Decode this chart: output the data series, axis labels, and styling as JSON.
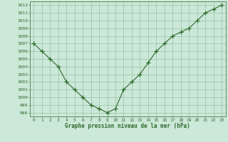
{
  "x": [
    0,
    1,
    2,
    3,
    4,
    5,
    6,
    7,
    8,
    9,
    10,
    11,
    12,
    13,
    14,
    15,
    16,
    17,
    18,
    19,
    20,
    21,
    22,
    23
  ],
  "y": [
    1007,
    1006,
    1005,
    1004,
    1002,
    1001,
    1000,
    999,
    998.5,
    998,
    998.5,
    1001,
    1002,
    1003,
    1004.5,
    1006,
    1007,
    1008,
    1008.5,
    1009,
    1010,
    1011,
    1011.5,
    1012
  ],
  "line_color": "#2d6a2d",
  "marker_color": "#2d6a2d",
  "bg_color": "#cce8d8",
  "grid_color": "#88bb99",
  "xlabel": "Graphe pression niveau de la mer (hPa)",
  "xlabel_color": "#2d6a2d",
  "tick_color": "#2d6a2d",
  "ylim": [
    997.5,
    1012.5
  ],
  "xlim": [
    -0.5,
    23.5
  ],
  "yticks": [
    998,
    999,
    1000,
    1001,
    1002,
    1003,
    1004,
    1005,
    1006,
    1007,
    1008,
    1009,
    1010,
    1011,
    1012
  ],
  "xticks": [
    0,
    1,
    2,
    3,
    4,
    5,
    6,
    7,
    8,
    9,
    10,
    11,
    12,
    13,
    14,
    15,
    16,
    17,
    18,
    19,
    20,
    21,
    22,
    23
  ]
}
